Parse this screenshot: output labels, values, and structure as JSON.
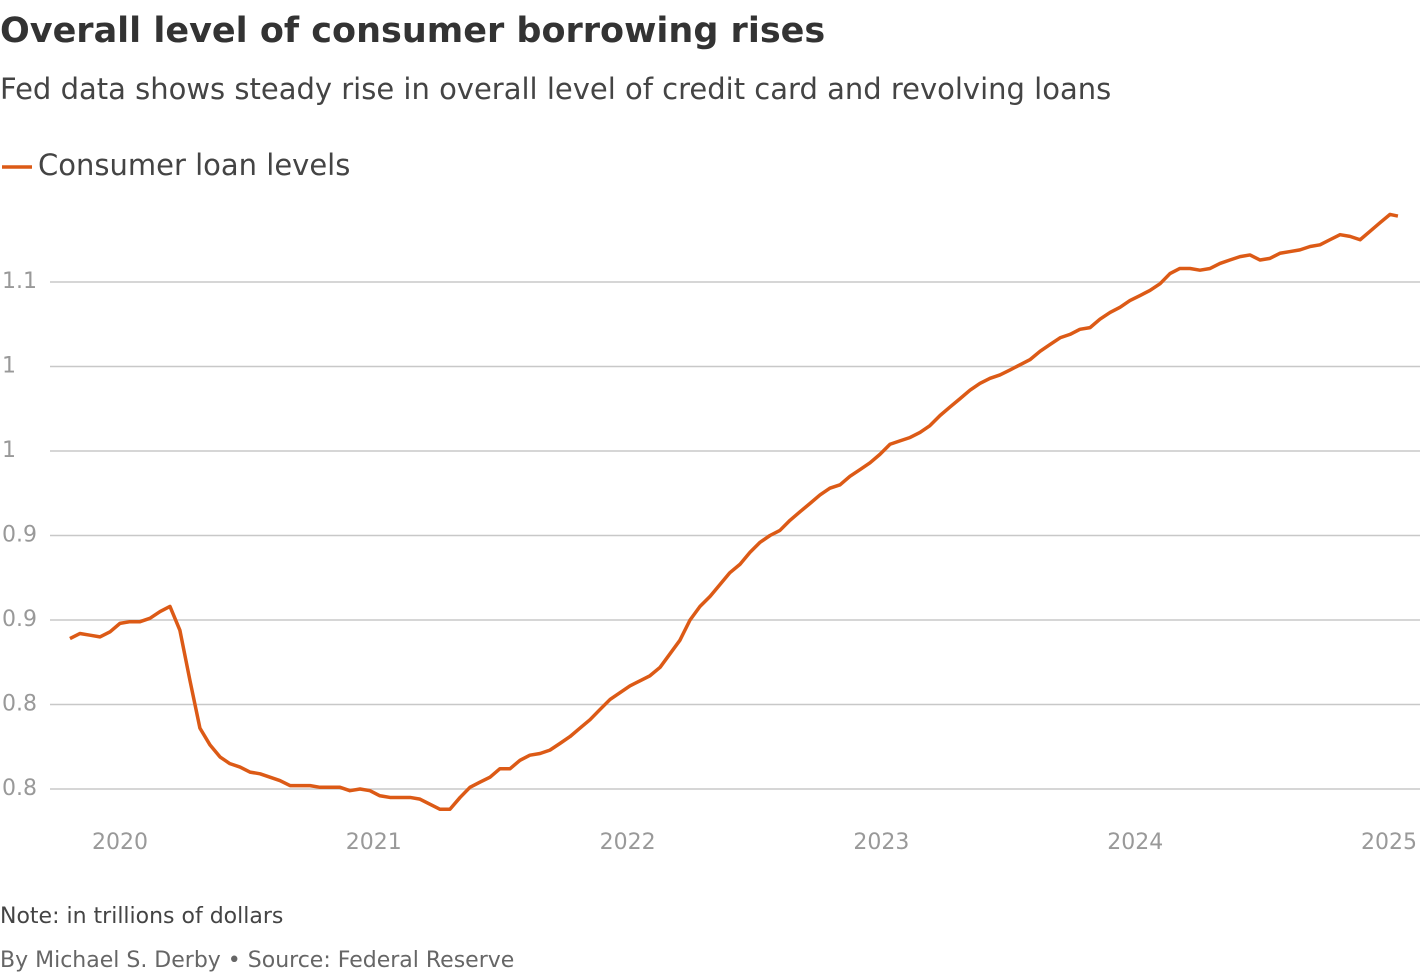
{
  "chart_data": {
    "type": "line",
    "title": "Overall level of consumer borrowing rises",
    "subtitle": "Fed data shows steady rise in overall level of credit card and revolving loans",
    "note": "Note: in trillions of dollars",
    "byline": "By Michael S. Derby • Source: Federal Reserve",
    "grid": true,
    "xlim": [
      2019.8,
      2025.04
    ],
    "xticks": [
      2020,
      2021,
      2022,
      2023,
      2024,
      2025
    ],
    "ylim": [
      0.78,
      1.15
    ],
    "yticks": [
      0.8,
      {
        "value": 0.85,
        "label": "0.8"
      },
      0.9,
      {
        "value": 0.95,
        "label": "0.9"
      },
      1,
      {
        "value": 1.05,
        "label": "1"
      },
      1.1
    ],
    "x": [
      2019.803,
      2019.842,
      2019.882,
      2019.921,
      2019.961,
      2020.0,
      2020.039,
      2020.079,
      2020.118,
      2020.158,
      2020.197,
      2020.236,
      2020.276,
      2020.315,
      2020.355,
      2020.394,
      2020.433,
      2020.473,
      2020.512,
      2020.552,
      2020.591,
      2020.63,
      2020.67,
      2020.709,
      2020.749,
      2020.788,
      2020.827,
      2020.867,
      2020.906,
      2020.946,
      2020.985,
      2021.024,
      2021.064,
      2021.103,
      2021.143,
      2021.182,
      2021.221,
      2021.261,
      2021.3,
      2021.34,
      2021.379,
      2021.418,
      2021.458,
      2021.497,
      2021.537,
      2021.576,
      2021.615,
      2021.655,
      2021.694,
      2021.734,
      2021.773,
      2021.812,
      2021.852,
      2021.891,
      2021.931,
      2021.97,
      2022.009,
      2022.049,
      2022.088,
      2022.128,
      2022.167,
      2022.206,
      2022.246,
      2022.285,
      2022.325,
      2022.364,
      2022.403,
      2022.443,
      2022.482,
      2022.522,
      2022.561,
      2022.6,
      2022.64,
      2022.679,
      2022.719,
      2022.758,
      2022.797,
      2022.837,
      2022.876,
      2022.916,
      2022.955,
      2022.994,
      2023.034,
      2023.073,
      2023.113,
      2023.152,
      2023.191,
      2023.231,
      2023.27,
      2023.31,
      2023.349,
      2023.388,
      2023.428,
      2023.467,
      2023.507,
      2023.546,
      2023.585,
      2023.625,
      2023.664,
      2023.704,
      2023.743,
      2023.782,
      2023.822,
      2023.861,
      2023.901,
      2023.94,
      2023.979,
      2024.019,
      2024.058,
      2024.098,
      2024.137,
      2024.176,
      2024.216,
      2024.255,
      2024.295,
      2024.334,
      2024.373,
      2024.413,
      2024.452,
      2024.492,
      2024.531,
      2024.57,
      2024.61,
      2024.649,
      2024.689,
      2024.728,
      2024.767,
      2024.807,
      2024.846,
      2024.886,
      2024.925,
      2024.964,
      2025.004,
      2025.035
    ],
    "series": [
      {
        "name": "Consumer loan levels",
        "color": "#dc5a16",
        "values": [
          0.889,
          0.892,
          0.891,
          0.89,
          0.893,
          0.898,
          0.899,
          0.899,
          0.901,
          0.905,
          0.908,
          0.894,
          0.864,
          0.836,
          0.826,
          0.819,
          0.815,
          0.813,
          0.81,
          0.809,
          0.807,
          0.805,
          0.802,
          0.802,
          0.802,
          0.801,
          0.801,
          0.801,
          0.799,
          0.8,
          0.799,
          0.796,
          0.795,
          0.795,
          0.795,
          0.794,
          0.791,
          0.788,
          0.788,
          0.795,
          0.801,
          0.804,
          0.807,
          0.812,
          0.812,
          0.817,
          0.82,
          0.821,
          0.823,
          0.827,
          0.831,
          0.836,
          0.841,
          0.847,
          0.853,
          0.857,
          0.861,
          0.864,
          0.867,
          0.872,
          0.88,
          0.888,
          0.9,
          0.908,
          0.914,
          0.921,
          0.928,
          0.933,
          0.94,
          0.946,
          0.95,
          0.953,
          0.959,
          0.964,
          0.969,
          0.974,
          0.978,
          0.98,
          0.985,
          0.989,
          0.993,
          0.998,
          1.004,
          1.006,
          1.008,
          1.011,
          1.015,
          1.021,
          1.026,
          1.031,
          1.036,
          1.04,
          1.043,
          1.045,
          1.048,
          1.051,
          1.054,
          1.059,
          1.063,
          1.067,
          1.069,
          1.072,
          1.073,
          1.078,
          1.082,
          1.085,
          1.089,
          1.092,
          1.095,
          1.099,
          1.105,
          1.108,
          1.108,
          1.107,
          1.108,
          1.111,
          1.113,
          1.115,
          1.116,
          1.113,
          1.114,
          1.117,
          1.118,
          1.119,
          1.121,
          1.122,
          1.125,
          1.128,
          1.127,
          1.125,
          1.13,
          1.135,
          1.14,
          1.139
        ]
      }
    ]
  }
}
